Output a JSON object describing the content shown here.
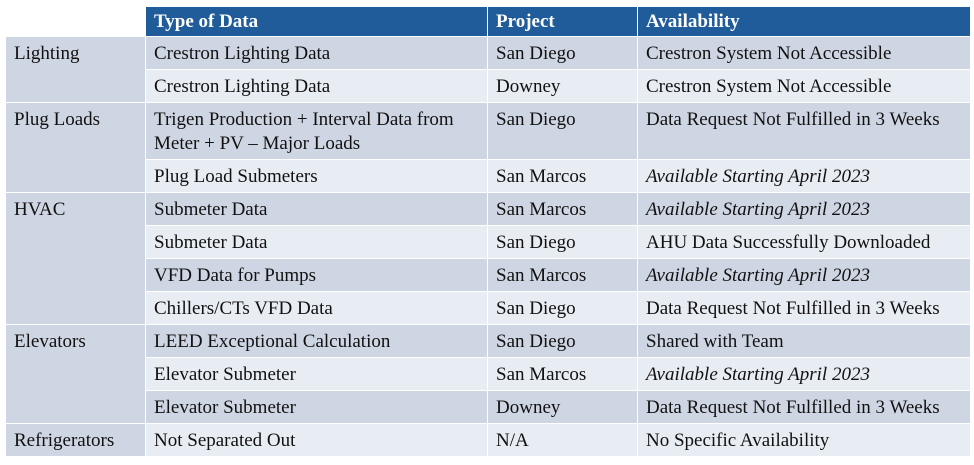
{
  "header": {
    "col0": "",
    "col1": "Type of Data",
    "col2": "Project",
    "col3": "Availability"
  },
  "groups": [
    {
      "category": "Lighting",
      "rows": [
        {
          "type": "Crestron Lighting Data",
          "project": "San Diego",
          "availability": "Crestron System Not Accessible",
          "italic": false
        },
        {
          "type": "Crestron Lighting Data",
          "project": "Downey",
          "availability": "Crestron System Not Accessible",
          "italic": false
        }
      ]
    },
    {
      "category": "Plug Loads",
      "rows": [
        {
          "type_line1": "Trigen Production + Interval Data from",
          "type_line2": "Meter + PV – Major Loads",
          "project": "San Diego",
          "availability": "Data Request Not Fulfilled in 3 Weeks",
          "italic": false
        },
        {
          "type": "Plug Load Submeters",
          "project": "San Marcos",
          "availability": "Available Starting April 2023",
          "italic": true
        }
      ]
    },
    {
      "category": "HVAC",
      "rows": [
        {
          "type": "Submeter Data",
          "project": "San Marcos",
          "availability": "Available Starting April 2023",
          "italic": true
        },
        {
          "type": "Submeter Data",
          "project": "San Diego",
          "availability": "AHU Data Successfully Downloaded",
          "italic": false
        },
        {
          "type": "VFD Data for Pumps",
          "project": "San Marcos",
          "availability": "Available Starting April 2023",
          "italic": true
        },
        {
          "type": "Chillers/CTs VFD Data",
          "project": "San Diego",
          "availability": "Data Request Not Fulfilled in 3 Weeks",
          "italic": false
        }
      ]
    },
    {
      "category": "Elevators",
      "rows": [
        {
          "type": "LEED Exceptional Calculation",
          "project": "San Diego",
          "availability": "Shared with Team",
          "italic": false
        },
        {
          "type": "Elevator Submeter",
          "project": "San Marcos",
          "availability": "Available Starting April 2023",
          "italic": true
        },
        {
          "type": "Elevator Submeter",
          "project": "Downey",
          "availability": "Data Request Not Fulfilled in 3 Weeks",
          "italic": false
        }
      ]
    },
    {
      "category": "Refrigerators",
      "rows": [
        {
          "type": "Not Separated Out",
          "project": "N/A",
          "availability": "No Specific Availability",
          "italic": false
        }
      ]
    }
  ]
}
